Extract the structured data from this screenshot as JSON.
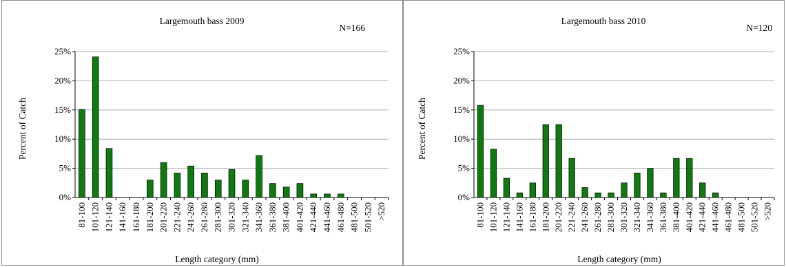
{
  "chart_data": [
    {
      "type": "bar",
      "title": "Largemouth bass 2009",
      "annotation": "N=166",
      "xlabel": "Length category (mm)",
      "ylabel": "Percent of Catch",
      "ylim": [
        0,
        25
      ],
      "yticks": [
        "0%",
        "5%",
        "10%",
        "15%",
        "20%",
        "25%"
      ],
      "grid": true,
      "bar_color": "#0f7a0f",
      "categories": [
        "81-100",
        "101-120",
        "121-140",
        "141-160",
        "161-180",
        "181-200",
        "201-220",
        "221-240",
        "241-260",
        "261-280",
        "281-300",
        "301-320",
        "321-340",
        "341-360",
        "361-380",
        "381-400",
        "401-420",
        "421-440",
        "441-460",
        "461-480",
        "481-500",
        "501-520",
        ">520"
      ],
      "values": [
        15.1,
        24.1,
        8.4,
        0,
        0,
        3.0,
        6.0,
        4.2,
        5.4,
        4.2,
        3.0,
        4.8,
        3.0,
        7.2,
        2.4,
        1.8,
        2.4,
        0.6,
        0.6,
        0.6,
        0,
        0,
        0
      ]
    },
    {
      "type": "bar",
      "title": "Largemouth bass 2010",
      "annotation": "N=120",
      "xlabel": "Length category (mm)",
      "ylabel": "Percent of Catch",
      "ylim": [
        0,
        25
      ],
      "yticks": [
        "0%",
        "5%",
        "10%",
        "15%",
        "20%",
        "25%"
      ],
      "grid": true,
      "bar_color": "#0f7a0f",
      "categories": [
        "81-100",
        "101-120",
        "121-140",
        "141-160",
        "161-180",
        "181-200",
        "201-220",
        "221-240",
        "241-260",
        "261-280",
        "281-300",
        "301-320",
        "321-340",
        "341-360",
        "361-380",
        "381-400",
        "401-420",
        "421-440",
        "441-460",
        "461-480",
        "481-500",
        "501-520",
        ">520"
      ],
      "values": [
        15.8,
        8.3,
        3.3,
        0.8,
        2.5,
        12.5,
        12.5,
        6.7,
        1.7,
        0.8,
        0.8,
        2.5,
        4.2,
        5.0,
        0.8,
        6.7,
        6.7,
        2.5,
        0.8,
        0,
        0,
        0,
        0
      ]
    }
  ]
}
